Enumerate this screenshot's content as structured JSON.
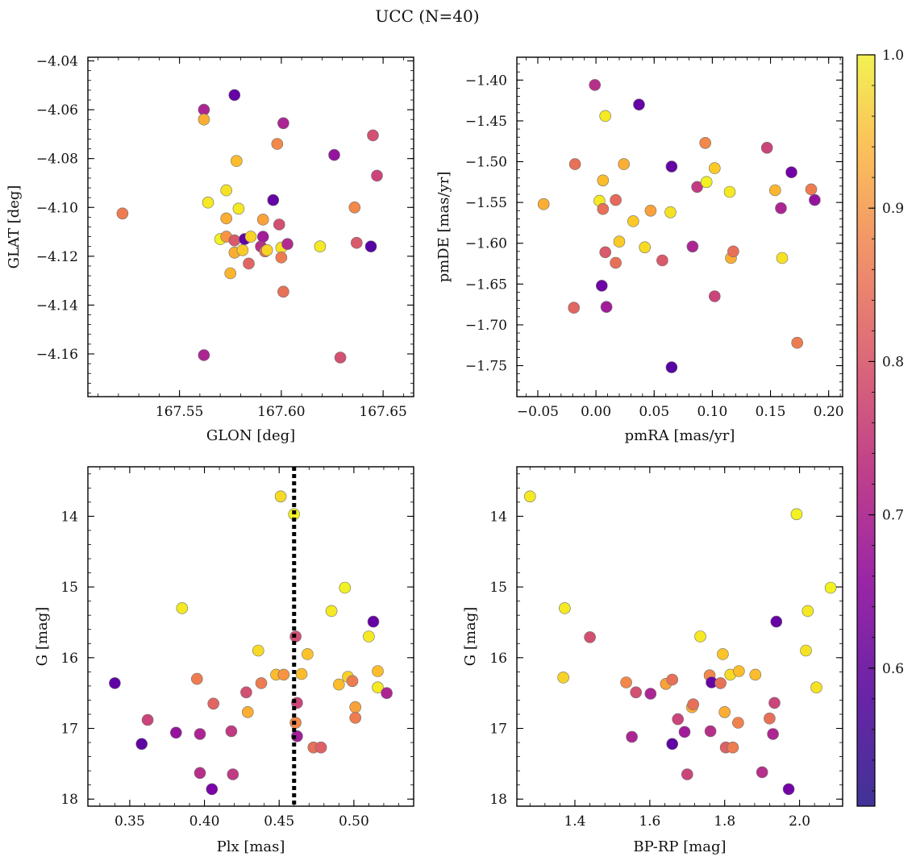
{
  "title": "UCC (N=40)",
  "colorbar": {
    "cmap": "plasma",
    "clim": [
      0.51,
      1.0
    ],
    "ticks": [
      0.6,
      0.7,
      0.8,
      0.9,
      1.0
    ],
    "tick_labels": [
      "0.6",
      "0.7",
      "0.8",
      "0.9",
      "1.0"
    ]
  },
  "chart_data": [
    {
      "type": "scatter",
      "xlabel": "GLON [deg]",
      "ylabel": "GLAT [deg]",
      "xlim": [
        167.505,
        167.665
      ],
      "ylim": [
        -4.1775,
        -4.0385
      ],
      "xticks": [
        167.55,
        167.6,
        167.65
      ],
      "xtick_labels": [
        "167.55",
        "167.60",
        "167.65"
      ],
      "yticks": [
        -4.16,
        -4.14,
        -4.12,
        -4.1,
        -4.08,
        -4.06,
        -4.04
      ],
      "ytick_labels": [
        "−4.16",
        "−4.14",
        "−4.12",
        "−4.10",
        "−4.08",
        "−4.06",
        "−4.04"
      ],
      "y_inverted": false,
      "points": [
        {
          "x": 167.522,
          "y": -4.1025,
          "c": 0.82
        },
        {
          "x": 167.562,
          "y": -4.06,
          "c": 0.66
        },
        {
          "x": 167.562,
          "y": -4.064,
          "c": 0.9
        },
        {
          "x": 167.562,
          "y": -4.1605,
          "c": 0.66
        },
        {
          "x": 167.577,
          "y": -4.054,
          "c": 0.55
        },
        {
          "x": 167.578,
          "y": -4.081,
          "c": 0.92
        },
        {
          "x": 167.564,
          "y": -4.098,
          "c": 0.98
        },
        {
          "x": 167.573,
          "y": -4.093,
          "c": 0.97
        },
        {
          "x": 167.579,
          "y": -4.1005,
          "c": 0.98
        },
        {
          "x": 167.573,
          "y": -4.1045,
          "c": 0.9
        },
        {
          "x": 167.57,
          "y": -4.113,
          "c": 0.99
        },
        {
          "x": 167.573,
          "y": -4.112,
          "c": 0.86
        },
        {
          "x": 167.577,
          "y": -4.1135,
          "c": 0.76
        },
        {
          "x": 167.577,
          "y": -4.1185,
          "c": 0.9
        },
        {
          "x": 167.581,
          "y": -4.1175,
          "c": 0.94
        },
        {
          "x": 167.575,
          "y": -4.127,
          "c": 0.91
        },
        {
          "x": 167.582,
          "y": -4.113,
          "c": 0.55
        },
        {
          "x": 167.585,
          "y": -4.112,
          "c": 0.95
        },
        {
          "x": 167.584,
          "y": -4.123,
          "c": 0.78
        },
        {
          "x": 167.591,
          "y": -4.105,
          "c": 0.88
        },
        {
          "x": 167.59,
          "y": -4.116,
          "c": 0.68
        },
        {
          "x": 167.591,
          "y": -4.112,
          "c": 0.64
        },
        {
          "x": 167.592,
          "y": -4.118,
          "c": 0.8
        },
        {
          "x": 167.593,
          "y": -4.1175,
          "c": 0.95
        },
        {
          "x": 167.596,
          "y": -4.097,
          "c": 0.55
        },
        {
          "x": 167.599,
          "y": -4.107,
          "c": 0.74
        },
        {
          "x": 167.6,
          "y": -4.1165,
          "c": 0.97
        },
        {
          "x": 167.6,
          "y": -4.1205,
          "c": 0.82
        },
        {
          "x": 167.601,
          "y": -4.1345,
          "c": 0.8
        },
        {
          "x": 167.601,
          "y": -4.0655,
          "c": 0.66
        },
        {
          "x": 167.598,
          "y": -4.074,
          "c": 0.84
        },
        {
          "x": 167.603,
          "y": -4.115,
          "c": 0.67
        },
        {
          "x": 167.619,
          "y": -4.116,
          "c": 0.98
        },
        {
          "x": 167.626,
          "y": -4.0785,
          "c": 0.62
        },
        {
          "x": 167.629,
          "y": -4.1615,
          "c": 0.74
        },
        {
          "x": 167.636,
          "y": -4.1,
          "c": 0.84
        },
        {
          "x": 167.637,
          "y": -4.1145,
          "c": 0.76
        },
        {
          "x": 167.644,
          "y": -4.116,
          "c": 0.53
        },
        {
          "x": 167.645,
          "y": -4.0705,
          "c": 0.74
        },
        {
          "x": 167.647,
          "y": -4.087,
          "c": 0.72
        }
      ]
    },
    {
      "type": "scatter",
      "xlabel": "pmRA [mas/yr]",
      "ylabel": "pmDE [mas/yr]",
      "xlim": [
        -0.068,
        0.212
      ],
      "ylim": [
        -1.788,
        -1.372
      ],
      "xticks": [
        -0.05,
        0.0,
        0.05,
        0.1,
        0.15,
        0.2
      ],
      "xtick_labels": [
        "−0.05",
        "0.00",
        "0.05",
        "0.10",
        "0.15",
        "0.20"
      ],
      "yticks": [
        -1.75,
        -1.7,
        -1.65,
        -1.6,
        -1.55,
        -1.5,
        -1.45,
        -1.4
      ],
      "ytick_labels": [
        "−1.75",
        "−1.70",
        "−1.65",
        "−1.60",
        "−1.55",
        "−1.50",
        "−1.45",
        "−1.40"
      ],
      "y_inverted": false,
      "points": [
        {
          "x": -0.045,
          "y": -1.552,
          "c": 0.9
        },
        {
          "x": -0.001,
          "y": -1.406,
          "c": 0.68
        },
        {
          "x": 0.037,
          "y": -1.43,
          "c": 0.55
        },
        {
          "x": 0.008,
          "y": -1.444,
          "c": 0.98
        },
        {
          "x": -0.018,
          "y": -1.503,
          "c": 0.8
        },
        {
          "x": 0.003,
          "y": -1.548,
          "c": 0.98
        },
        {
          "x": 0.006,
          "y": -1.523,
          "c": 0.92
        },
        {
          "x": 0.006,
          "y": -1.558,
          "c": 0.8
        },
        {
          "x": 0.017,
          "y": -1.547,
          "c": 0.79
        },
        {
          "x": 0.024,
          "y": -1.503,
          "c": 0.9
        },
        {
          "x": 0.02,
          "y": -1.598,
          "c": 0.94
        },
        {
          "x": 0.008,
          "y": -1.611,
          "c": 0.76
        },
        {
          "x": 0.017,
          "y": -1.624,
          "c": 0.8
        },
        {
          "x": 0.005,
          "y": -1.652,
          "c": 0.56
        },
        {
          "x": 0.009,
          "y": -1.678,
          "c": 0.64
        },
        {
          "x": -0.019,
          "y": -1.679,
          "c": 0.78
        },
        {
          "x": 0.032,
          "y": -1.573,
          "c": 0.94
        },
        {
          "x": 0.042,
          "y": -1.605,
          "c": 0.96
        },
        {
          "x": 0.047,
          "y": -1.56,
          "c": 0.88
        },
        {
          "x": 0.057,
          "y": -1.621,
          "c": 0.76
        },
        {
          "x": 0.065,
          "y": -1.506,
          "c": 0.55
        },
        {
          "x": 0.064,
          "y": -1.562,
          "c": 0.97
        },
        {
          "x": 0.065,
          "y": -1.752,
          "c": 0.53
        },
        {
          "x": 0.083,
          "y": -1.604,
          "c": 0.66
        },
        {
          "x": 0.087,
          "y": -1.531,
          "c": 0.7
        },
        {
          "x": 0.094,
          "y": -1.477,
          "c": 0.84
        },
        {
          "x": 0.095,
          "y": -1.525,
          "c": 0.99
        },
        {
          "x": 0.102,
          "y": -1.508,
          "c": 0.94
        },
        {
          "x": 0.102,
          "y": -1.665,
          "c": 0.72
        },
        {
          "x": 0.115,
          "y": -1.537,
          "c": 0.98
        },
        {
          "x": 0.116,
          "y": -1.618,
          "c": 0.9
        },
        {
          "x": 0.118,
          "y": -1.61,
          "c": 0.8
        },
        {
          "x": 0.147,
          "y": -1.483,
          "c": 0.72
        },
        {
          "x": 0.154,
          "y": -1.535,
          "c": 0.91
        },
        {
          "x": 0.159,
          "y": -1.557,
          "c": 0.66
        },
        {
          "x": 0.16,
          "y": -1.618,
          "c": 0.97
        },
        {
          "x": 0.168,
          "y": -1.513,
          "c": 0.57
        },
        {
          "x": 0.173,
          "y": -1.722,
          "c": 0.82
        },
        {
          "x": 0.185,
          "y": -1.534,
          "c": 0.82
        },
        {
          "x": 0.188,
          "y": -1.547,
          "c": 0.62
        }
      ]
    },
    {
      "type": "scatter",
      "xlabel": "Plx [mas]",
      "ylabel": "G [mag]",
      "xlim": [
        0.322,
        0.54
      ],
      "ylim": [
        18.1,
        13.3
      ],
      "xticks": [
        0.35,
        0.4,
        0.45,
        0.5
      ],
      "xtick_labels": [
        "0.35",
        "0.40",
        "0.45",
        "0.50"
      ],
      "yticks": [
        14,
        15,
        16,
        17,
        18
      ],
      "ytick_labels": [
        "14",
        "15",
        "16",
        "17",
        "18"
      ],
      "y_inverted": true,
      "vline": {
        "x": 0.46,
        "style": "dotted",
        "color": "#000000"
      },
      "points": [
        {
          "x": 0.34,
          "y": 16.36,
          "c": 0.54
        },
        {
          "x": 0.358,
          "y": 17.22,
          "c": 0.54
        },
        {
          "x": 0.362,
          "y": 16.88,
          "c": 0.72
        },
        {
          "x": 0.381,
          "y": 17.06,
          "c": 0.62
        },
        {
          "x": 0.385,
          "y": 15.3,
          "c": 0.98
        },
        {
          "x": 0.395,
          "y": 16.3,
          "c": 0.82
        },
        {
          "x": 0.397,
          "y": 17.08,
          "c": 0.66
        },
        {
          "x": 0.397,
          "y": 17.63,
          "c": 0.68
        },
        {
          "x": 0.405,
          "y": 17.86,
          "c": 0.58
        },
        {
          "x": 0.406,
          "y": 16.65,
          "c": 0.78
        },
        {
          "x": 0.418,
          "y": 17.04,
          "c": 0.7
        },
        {
          "x": 0.419,
          "y": 17.65,
          "c": 0.7
        },
        {
          "x": 0.428,
          "y": 16.49,
          "c": 0.74
        },
        {
          "x": 0.429,
          "y": 16.77,
          "c": 0.9
        },
        {
          "x": 0.436,
          "y": 15.9,
          "c": 0.96
        },
        {
          "x": 0.438,
          "y": 16.36,
          "c": 0.82
        },
        {
          "x": 0.448,
          "y": 16.24,
          "c": 0.92
        },
        {
          "x": 0.451,
          "y": 13.72,
          "c": 0.96
        },
        {
          "x": 0.453,
          "y": 16.24,
          "c": 0.86
        },
        {
          "x": 0.46,
          "y": 13.97,
          "c": 0.99
        },
        {
          "x": 0.461,
          "y": 15.7,
          "c": 0.74
        },
        {
          "x": 0.461,
          "y": 16.92,
          "c": 0.84
        },
        {
          "x": 0.462,
          "y": 16.64,
          "c": 0.72
        },
        {
          "x": 0.462,
          "y": 17.11,
          "c": 0.64
        },
        {
          "x": 0.465,
          "y": 16.23,
          "c": 0.92
        },
        {
          "x": 0.469,
          "y": 15.95,
          "c": 0.93
        },
        {
          "x": 0.473,
          "y": 17.27,
          "c": 0.8
        },
        {
          "x": 0.478,
          "y": 17.27,
          "c": 0.77
        },
        {
          "x": 0.485,
          "y": 15.34,
          "c": 0.98
        },
        {
          "x": 0.49,
          "y": 16.38,
          "c": 0.92
        },
        {
          "x": 0.494,
          "y": 15.01,
          "c": 0.99
        },
        {
          "x": 0.496,
          "y": 16.27,
          "c": 0.95
        },
        {
          "x": 0.499,
          "y": 16.33,
          "c": 0.82
        },
        {
          "x": 0.501,
          "y": 16.7,
          "c": 0.88
        },
        {
          "x": 0.501,
          "y": 16.85,
          "c": 0.82
        },
        {
          "x": 0.51,
          "y": 15.7,
          "c": 0.98
        },
        {
          "x": 0.513,
          "y": 15.49,
          "c": 0.55
        },
        {
          "x": 0.516,
          "y": 16.19,
          "c": 0.92
        },
        {
          "x": 0.516,
          "y": 16.42,
          "c": 0.98
        },
        {
          "x": 0.522,
          "y": 16.5,
          "c": 0.66
        }
      ]
    },
    {
      "type": "scatter",
      "xlabel": "BP-RP [mag]",
      "ylabel": "G [mag]",
      "xlim": [
        1.245,
        2.115
      ],
      "ylim": [
        18.1,
        13.3
      ],
      "xticks": [
        1.4,
        1.6,
        1.8,
        2.0
      ],
      "xtick_labels": [
        "1.4",
        "1.6",
        "1.8",
        "2.0"
      ],
      "yticks": [
        14,
        15,
        16,
        17,
        18
      ],
      "ytick_labels": [
        "14",
        "15",
        "16",
        "17",
        "18"
      ],
      "y_inverted": true,
      "points": [
        {
          "x": 1.28,
          "y": 13.72,
          "c": 0.98
        },
        {
          "x": 1.369,
          "y": 16.28,
          "c": 0.95
        },
        {
          "x": 1.373,
          "y": 15.3,
          "c": 0.98
        },
        {
          "x": 1.44,
          "y": 15.71,
          "c": 0.74
        },
        {
          "x": 1.537,
          "y": 16.35,
          "c": 0.84
        },
        {
          "x": 1.552,
          "y": 17.12,
          "c": 0.66
        },
        {
          "x": 1.563,
          "y": 16.49,
          "c": 0.74
        },
        {
          "x": 1.602,
          "y": 16.51,
          "c": 0.66
        },
        {
          "x": 1.643,
          "y": 16.37,
          "c": 0.88
        },
        {
          "x": 1.66,
          "y": 16.31,
          "c": 0.8
        },
        {
          "x": 1.66,
          "y": 17.22,
          "c": 0.54
        },
        {
          "x": 1.675,
          "y": 16.87,
          "c": 0.72
        },
        {
          "x": 1.693,
          "y": 17.05,
          "c": 0.64
        },
        {
          "x": 1.7,
          "y": 17.65,
          "c": 0.72
        },
        {
          "x": 1.713,
          "y": 16.7,
          "c": 0.9
        },
        {
          "x": 1.716,
          "y": 16.66,
          "c": 0.8
        },
        {
          "x": 1.735,
          "y": 15.7,
          "c": 0.98
        },
        {
          "x": 1.76,
          "y": 16.25,
          "c": 0.84
        },
        {
          "x": 1.765,
          "y": 16.35,
          "c": 0.55
        },
        {
          "x": 1.762,
          "y": 17.04,
          "c": 0.68
        },
        {
          "x": 1.789,
          "y": 16.36,
          "c": 0.8
        },
        {
          "x": 1.795,
          "y": 15.95,
          "c": 0.93
        },
        {
          "x": 1.8,
          "y": 16.77,
          "c": 0.9
        },
        {
          "x": 1.803,
          "y": 17.27,
          "c": 0.77
        },
        {
          "x": 1.815,
          "y": 16.24,
          "c": 0.96
        },
        {
          "x": 1.822,
          "y": 17.27,
          "c": 0.82
        },
        {
          "x": 1.836,
          "y": 16.92,
          "c": 0.83
        },
        {
          "x": 1.838,
          "y": 16.19,
          "c": 0.92
        },
        {
          "x": 1.882,
          "y": 16.24,
          "c": 0.92
        },
        {
          "x": 1.9,
          "y": 17.62,
          "c": 0.68
        },
        {
          "x": 1.92,
          "y": 16.86,
          "c": 0.8
        },
        {
          "x": 1.929,
          "y": 17.08,
          "c": 0.66
        },
        {
          "x": 1.933,
          "y": 16.64,
          "c": 0.72
        },
        {
          "x": 1.938,
          "y": 15.49,
          "c": 0.55
        },
        {
          "x": 1.971,
          "y": 17.86,
          "c": 0.57
        },
        {
          "x": 1.992,
          "y": 13.97,
          "c": 0.99
        },
        {
          "x": 2.017,
          "y": 15.9,
          "c": 0.97
        },
        {
          "x": 2.022,
          "y": 15.34,
          "c": 0.98
        },
        {
          "x": 2.045,
          "y": 16.42,
          "c": 0.97
        },
        {
          "x": 2.083,
          "y": 15.01,
          "c": 0.99
        }
      ]
    }
  ]
}
